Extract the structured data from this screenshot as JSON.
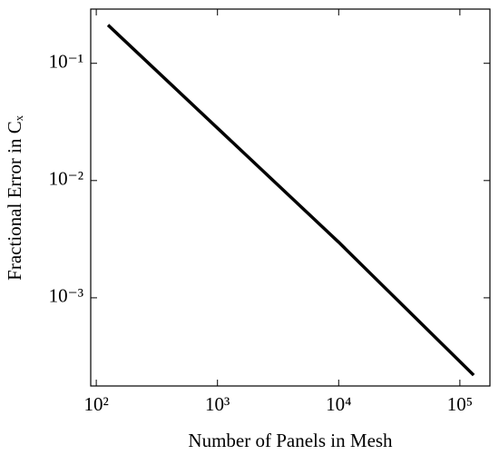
{
  "chart_data": {
    "type": "line",
    "x_label": "Number of Panels in Mesh",
    "y_label": "Fractional Error in Cₓ",
    "x": [
      125,
      1000,
      10000,
      130000
    ],
    "series": [
      {
        "name": "Fractional error",
        "color": "#000000",
        "values": [
          0.212,
          0.028,
          0.00298,
          0.000219
        ]
      }
    ],
    "xscale": "log",
    "yscale": "log",
    "xlim": [
      90,
      177000
    ],
    "ylim": [
      0.000177,
      0.29
    ],
    "xticks": [
      {
        "value": 100,
        "label": "10²"
      },
      {
        "value": 1000,
        "label": "10³"
      },
      {
        "value": 10000,
        "label": "10⁴"
      },
      {
        "value": 100000,
        "label": "10⁵"
      }
    ],
    "yticks": [
      {
        "value": 0.001,
        "label": "10⁻³"
      },
      {
        "value": 0.01,
        "label": "10⁻²"
      },
      {
        "value": 0.1,
        "label": "10⁻¹"
      }
    ],
    "grid": false
  }
}
